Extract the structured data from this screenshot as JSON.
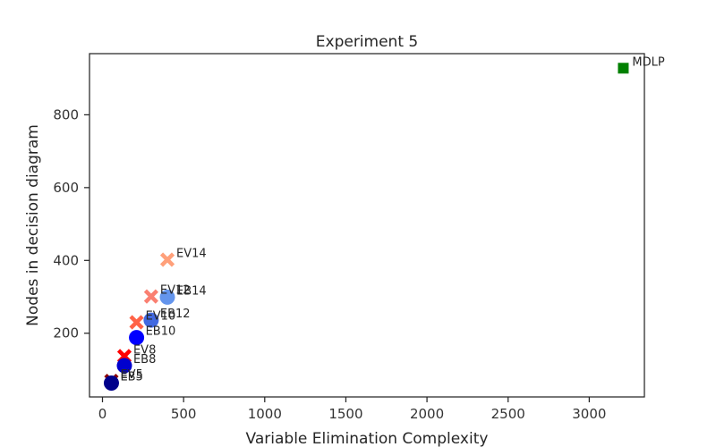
{
  "chart_data": {
    "type": "scatter",
    "title": "Experiment 5",
    "xlabel": "Variable Elimination Complexity",
    "ylabel": "Nodes in decision diagram",
    "xlim": [
      -80,
      3340
    ],
    "ylim": [
      25,
      968
    ],
    "xticks": [
      0,
      500,
      1000,
      1500,
      2000,
      2500,
      3000
    ],
    "yticks": [
      200,
      400,
      600,
      800
    ],
    "grid": false,
    "legend": "none",
    "points": [
      {
        "label": "MDLP",
        "x": 3210,
        "y": 928,
        "marker": "square",
        "color": "#008000"
      },
      {
        "label": "EV14",
        "x": 400,
        "y": 402,
        "marker": "x",
        "color": "#ffa07a"
      },
      {
        "label": "EB14",
        "x": 400,
        "y": 299,
        "marker": "circle",
        "color": "#6495ed"
      },
      {
        "label": "EV12",
        "x": 300,
        "y": 301,
        "marker": "x",
        "color": "#fa8072"
      },
      {
        "label": "EB12",
        "x": 300,
        "y": 236,
        "marker": "circle",
        "color": "#4169e1"
      },
      {
        "label": "EV10",
        "x": 210,
        "y": 230,
        "marker": "x",
        "color": "#ff6347"
      },
      {
        "label": "EB10",
        "x": 210,
        "y": 188,
        "marker": "circle",
        "color": "#0000ff"
      },
      {
        "label": "EV8",
        "x": 135,
        "y": 137,
        "marker": "x",
        "color": "#ff0000"
      },
      {
        "label": "EB8",
        "x": 135,
        "y": 111,
        "marker": "circle",
        "color": "#0000cd"
      },
      {
        "label": "EV5",
        "x": 55,
        "y": 69,
        "marker": "x",
        "color": "#8b0000"
      },
      {
        "label": "EB5",
        "x": 55,
        "y": 63,
        "marker": "circle",
        "color": "#00008b"
      }
    ]
  }
}
